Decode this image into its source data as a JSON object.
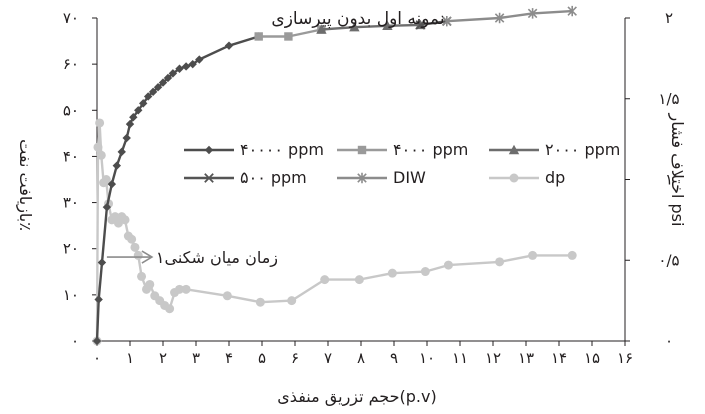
{
  "chart_data": {
    "type": "line",
    "title": "نمونه اول بدون پیرسازی",
    "xlabel": "حجم تزریق منفذی(p.v)",
    "ylabel_left": "بازیافت نفت٪",
    "ylabel_right": "اختلاف فشار psi",
    "xlim": [
      0,
      16
    ],
    "ylim_left": [
      0,
      70
    ],
    "ylim_right": [
      0,
      2
    ],
    "x_tick_labels": [
      "۰",
      "۱",
      "۲",
      "۳",
      "۴",
      "۵",
      "۶",
      "۷",
      "۸",
      "۹",
      "۱۰",
      "۱۱",
      "۱۲",
      "۱۳",
      "۱۴",
      "۱۵",
      "۱۶"
    ],
    "y_left_tick_labels": [
      "۰",
      "۱۰",
      "۲۰",
      "۳۰",
      "۴۰",
      "۵۰",
      "۶۰",
      "۷۰"
    ],
    "y_right_tick_labels": [
      "۰",
      "۰/۵",
      "۱",
      "۱/۵",
      "۲"
    ],
    "grid": false,
    "annotation": {
      "text": "زمان میان شکنی۱",
      "x": 1.3,
      "y": 0.52
    },
    "series": [
      {
        "name": "۴۰۰۰۰ ppm",
        "axis": "left",
        "color": "#4d4d4d",
        "marker": "diamond",
        "x": [
          0,
          0.05,
          0.15,
          0.3,
          0.45,
          0.6,
          0.75,
          0.9,
          1.0,
          1.1,
          1.25,
          1.4,
          1.55,
          1.7,
          1.85,
          2.0,
          2.15,
          2.3,
          2.5,
          2.7,
          2.9,
          3.1,
          4.0,
          4.9
        ],
        "y": [
          0,
          9,
          17,
          29,
          34,
          38,
          41,
          44,
          47,
          48.5,
          50,
          51.5,
          53,
          54,
          55,
          56,
          57,
          58,
          59,
          59.5,
          60,
          61,
          64,
          66
        ]
      },
      {
        "name": "۴۰۰۰ ppm",
        "axis": "left",
        "color": "#9a9a9a",
        "marker": "square",
        "x": [
          4.9,
          5.8,
          6.8
        ],
        "y": [
          66,
          66,
          67.5
        ]
      },
      {
        "name": "۲۰۰۰ ppm",
        "axis": "left",
        "color": "#6d6d6d",
        "marker": "triangle",
        "x": [
          6.8,
          7.8,
          8.8,
          9.8
        ],
        "y": [
          67.5,
          68,
          68.3,
          68.5
        ]
      },
      {
        "name": "۵۰۰ ppm",
        "axis": "left",
        "color": "#555555",
        "marker": "x",
        "x": [
          9.8,
          10.6
        ],
        "y": [
          68.5,
          69.3
        ]
      },
      {
        "name": "DIW",
        "axis": "left",
        "color": "#8c8c8c",
        "marker": "star",
        "x": [
          10.6,
          12.2,
          13.2,
          14.4
        ],
        "y": [
          69.3,
          70,
          71,
          71.5
        ]
      },
      {
        "name": "dp",
        "axis": "right",
        "color": "#c8c8c8",
        "marker": "circle",
        "x": [
          0,
          0.03,
          0.08,
          0.13,
          0.2,
          0.28,
          0.35,
          0.45,
          0.55,
          0.65,
          0.75,
          0.85,
          0.95,
          1.05,
          1.15,
          1.25,
          1.35,
          1.5,
          1.6,
          1.75,
          1.9,
          2.05,
          2.2,
          2.35,
          2.5,
          2.7,
          3.95,
          4.95,
          5.9,
          6.9,
          7.95,
          8.95,
          9.95,
          10.65,
          12.2,
          13.2,
          14.4
        ],
        "y": [
          0,
          1.2,
          1.35,
          1.15,
          0.98,
          1.0,
          0.85,
          0.75,
          0.77,
          0.73,
          0.77,
          0.75,
          0.65,
          0.63,
          0.58,
          0.53,
          0.4,
          0.32,
          0.35,
          0.28,
          0.25,
          0.22,
          0.2,
          0.3,
          0.32,
          0.32,
          0.28,
          0.24,
          0.25,
          0.38,
          0.38,
          0.42,
          0.43,
          0.47,
          0.49,
          0.53,
          0.53
        ]
      }
    ],
    "legend": [
      {
        "label": "۴۰۰۰۰ ppm",
        "series": 0
      },
      {
        "label": "۴۰۰۰ ppm",
        "series": 1
      },
      {
        "label": "۲۰۰۰ ppm",
        "series": 2
      },
      {
        "label": "۵۰۰ ppm",
        "series": 3
      },
      {
        "label": "DIW",
        "series": 4
      },
      {
        "label": "dp",
        "series": 5
      }
    ]
  }
}
